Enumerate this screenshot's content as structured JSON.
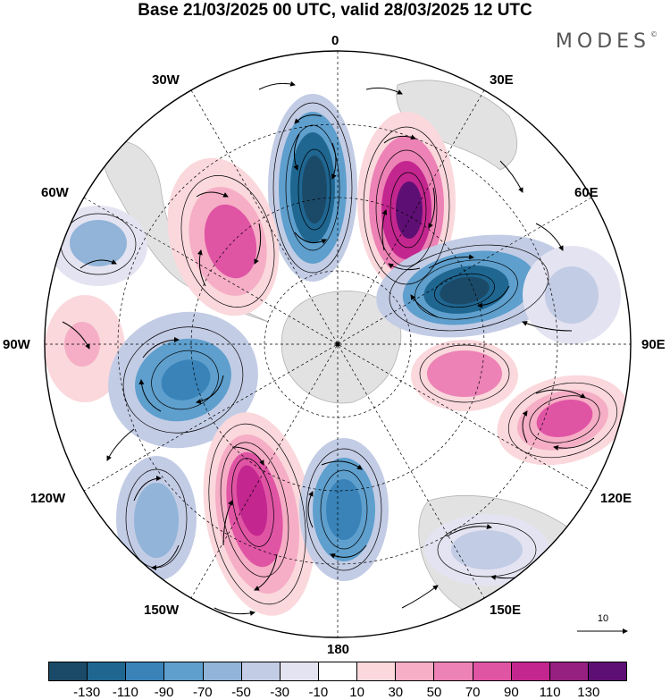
{
  "title": "Base 21/03/2025 00 UTC, valid 28/03/2025 12 UTC",
  "brand": "MODES",
  "brand_mark": "©",
  "meridian_labels": {
    "top": "0",
    "deg30e": "30E",
    "deg60e": "60E",
    "deg90e": "90E",
    "deg120e": "120E",
    "deg150e": "150E",
    "bottom": "180",
    "deg150w": "150W",
    "deg120w": "120W",
    "deg90w": "90W",
    "deg60w": "60W",
    "deg30w": "30W"
  },
  "reference_vector": "10",
  "colorbar": {
    "colors": [
      "#1b4a68",
      "#1f6691",
      "#3983b8",
      "#5e9fcd",
      "#91b4d8",
      "#c3cce5",
      "#e4e3f1",
      "#ffffff",
      "#fad8dc",
      "#f5aec5",
      "#ec82b5",
      "#e054a4",
      "#c3268f",
      "#952080",
      "#5e0f73"
    ],
    "tick_labels": [
      "-130",
      "-110",
      "-90",
      "-70",
      "-50",
      "-30",
      "-10",
      "10",
      "30",
      "50",
      "70",
      "90",
      "110",
      "130"
    ]
  }
}
